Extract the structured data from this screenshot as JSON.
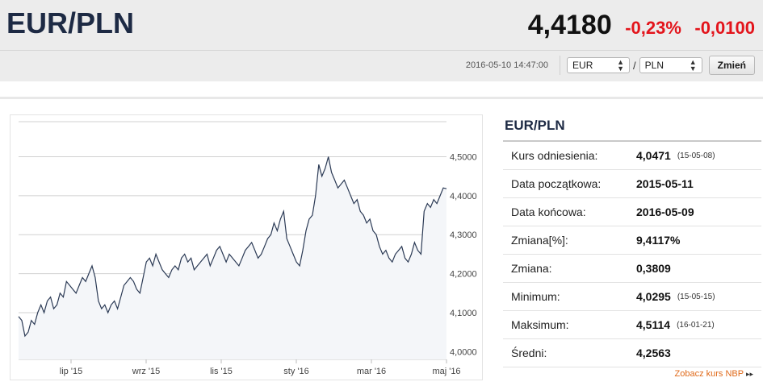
{
  "header": {
    "pair": "EUR/PLN",
    "rate": "4,4180",
    "change_pct": "-0,23%",
    "change_abs": "-0,0100",
    "timestamp": "2016-05-10 14:47:00",
    "from_currency": "EUR",
    "to_currency": "PLN",
    "separator": "/",
    "button_label": "Zmień"
  },
  "colors": {
    "accent_red": "#e3141b",
    "title_navy": "#1d2a44",
    "link_orange": "#e06a1a",
    "line": "#2b3a55"
  },
  "chart_data": {
    "type": "line",
    "x_tick_labels": [
      "lip '15",
      "wrz '15",
      "lis '15",
      "sty '16",
      "mar '16",
      "maj '16"
    ],
    "y_tick_labels": [
      "4,0000",
      "4,1000",
      "4,2000",
      "4,3000",
      "4,4000",
      "4,5000"
    ],
    "ylim": [
      3.98,
      4.59
    ],
    "grid": "horizontal",
    "series": [
      {
        "values": [
          4.09,
          4.08,
          4.04,
          4.05,
          4.08,
          4.07,
          4.1,
          4.12,
          4.1,
          4.13,
          4.14,
          4.11,
          4.12,
          4.15,
          4.14,
          4.18,
          4.17,
          4.16,
          4.15,
          4.17,
          4.19,
          4.18,
          4.2,
          4.22,
          4.19,
          4.13,
          4.11,
          4.12,
          4.1,
          4.12,
          4.13,
          4.11,
          4.14,
          4.17,
          4.18,
          4.19,
          4.18,
          4.16,
          4.15,
          4.19,
          4.23,
          4.24,
          4.22,
          4.25,
          4.23,
          4.21,
          4.2,
          4.19,
          4.21,
          4.22,
          4.21,
          4.24,
          4.25,
          4.23,
          4.24,
          4.21,
          4.22,
          4.23,
          4.24,
          4.25,
          4.22,
          4.24,
          4.26,
          4.27,
          4.25,
          4.23,
          4.25,
          4.24,
          4.23,
          4.22,
          4.24,
          4.26,
          4.27,
          4.28,
          4.26,
          4.24,
          4.25,
          4.27,
          4.29,
          4.3,
          4.33,
          4.31,
          4.34,
          4.36,
          4.29,
          4.27,
          4.25,
          4.23,
          4.22,
          4.26,
          4.31,
          4.34,
          4.35,
          4.4,
          4.48,
          4.45,
          4.47,
          4.5,
          4.46,
          4.44,
          4.42,
          4.43,
          4.44,
          4.42,
          4.4,
          4.38,
          4.39,
          4.36,
          4.35,
          4.33,
          4.34,
          4.31,
          4.3,
          4.27,
          4.25,
          4.26,
          4.24,
          4.23,
          4.25,
          4.26,
          4.27,
          4.24,
          4.23,
          4.25,
          4.28,
          4.26,
          4.25,
          4.36,
          4.38,
          4.37,
          4.39,
          4.38,
          4.4,
          4.42,
          4.418
        ]
      }
    ]
  },
  "panel": {
    "title": "EUR/PLN",
    "rows": [
      {
        "label": "Kurs odniesienia:",
        "value": "4,0471",
        "date": "(15-05-08)"
      },
      {
        "label": "Data początkowa:",
        "value": "2015-05-11",
        "date": ""
      },
      {
        "label": "Data końcowa:",
        "value": "2016-05-09",
        "date": ""
      },
      {
        "label": "Zmiana[%]:",
        "value": "9,4117%",
        "date": ""
      },
      {
        "label": "Zmiana:",
        "value": "0,3809",
        "date": ""
      },
      {
        "label": "Minimum:",
        "value": "4,0295",
        "date": "(15-05-15)"
      },
      {
        "label": "Maksimum:",
        "value": "4,5114",
        "date": "(16-01-21)"
      },
      {
        "label": "Średni:",
        "value": "4,2563",
        "date": ""
      }
    ],
    "link_label": "Zobacz kurs NBP",
    "link_icon": "double-chevron-right-icon"
  }
}
